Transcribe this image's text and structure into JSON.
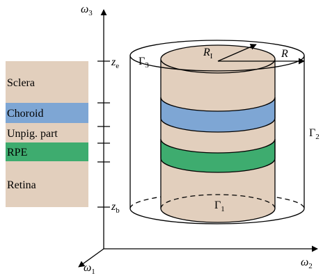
{
  "axes": {
    "vertical": {
      "symbol": "ω",
      "sub": "3"
    },
    "depth": {
      "symbol": "ω",
      "sub": "1"
    },
    "horizontal": {
      "symbol": "ω",
      "sub": "2"
    }
  },
  "levels": {
    "top": {
      "symbol": "z",
      "sub": "e"
    },
    "bottom": {
      "symbol": "z",
      "sub": "b"
    }
  },
  "boundaries": {
    "top": {
      "symbol": "Γ",
      "sub": "3"
    },
    "side": {
      "symbol": "Γ",
      "sub": "2"
    },
    "bottom": {
      "symbol": "Γ",
      "sub": "1"
    }
  },
  "radii": {
    "inner": {
      "symbol": "R",
      "sub": "I"
    },
    "outer": {
      "symbol": "R"
    }
  },
  "layers": [
    "Sclera",
    "Choroid",
    "Unpig. part",
    "RPE",
    "Retina"
  ]
}
